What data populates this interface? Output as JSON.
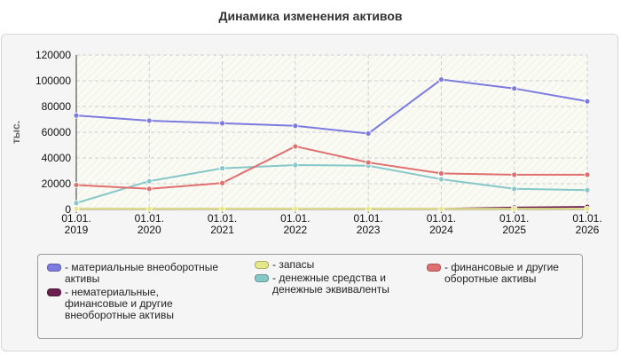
{
  "chart_data": {
    "type": "line",
    "title": "Динамика изменения активов",
    "ylabel": "тыс.",
    "xlabel": "",
    "ylim": [
      0,
      120000
    ],
    "yticks": [
      0,
      20000,
      40000,
      60000,
      80000,
      100000,
      120000
    ],
    "categories": [
      "01.01.\n2019",
      "01.01.\n2020",
      "01.01.\n2021",
      "01.01.\n2022",
      "01.01.\n2023",
      "01.01.\n2024",
      "01.01.\n2025",
      "01.01.\n2026"
    ],
    "grid": true,
    "legend_position": "bottom",
    "series": [
      {
        "name": "материальные внеоборотные\nактивы",
        "color": "#7b7be0",
        "values": [
          73000,
          69000,
          67000,
          65000,
          59000,
          101000,
          94000,
          84000
        ]
      },
      {
        "name": "нематериальные,\nфинансовые и другие\nвнеоборотные активы",
        "color": "#6b1f4e",
        "values": [
          500,
          500,
          500,
          500,
          500,
          500,
          1500,
          2000
        ]
      },
      {
        "name": "запасы",
        "color": "#e6e68a",
        "values": [
          500,
          500,
          500,
          500,
          500,
          500,
          500,
          500
        ]
      },
      {
        "name": "денежные средства и\nденежные эквиваленты",
        "color": "#86c8c8",
        "values": [
          5000,
          22000,
          32000,
          34500,
          34000,
          23500,
          16000,
          15000
        ]
      },
      {
        "name": "финансовые и другие\nоборотные активы",
        "color": "#e07070",
        "values": [
          19000,
          16000,
          20500,
          49000,
          36500,
          28000,
          27000,
          27000
        ]
      }
    ]
  }
}
